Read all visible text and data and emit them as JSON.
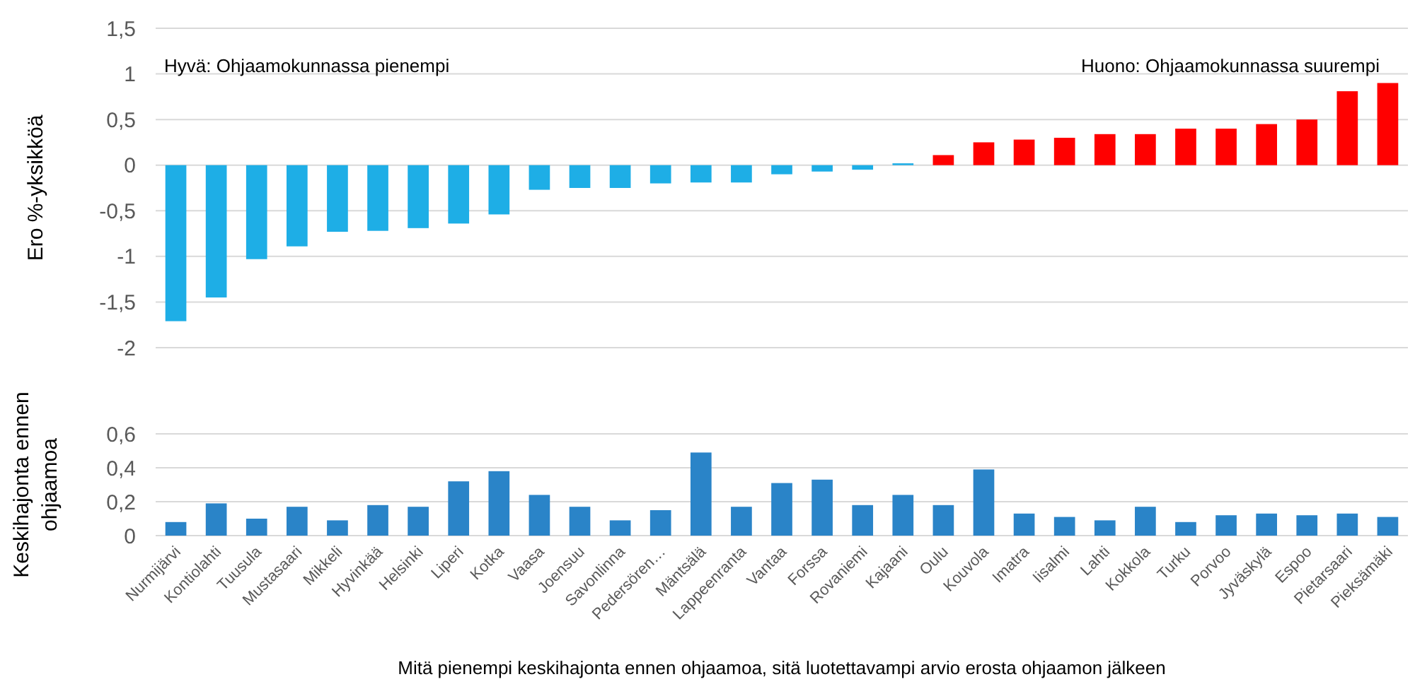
{
  "chart_data": [
    {
      "type": "bar",
      "ylabel": "Ero %-yksikköä",
      "annotations": [
        "Hyvä: Ohjaamokunnassa pienempi",
        "Huono: Ohjaamokunnassa suurempi"
      ],
      "values": [
        -1.71,
        -1.45,
        -1.03,
        -0.89,
        -0.73,
        -0.72,
        -0.69,
        -0.64,
        -0.54,
        -0.27,
        -0.25,
        -0.25,
        -0.2,
        -0.19,
        -0.19,
        -0.1,
        -0.07,
        -0.05,
        0.02,
        0.11,
        0.25,
        0.28,
        0.3,
        0.34,
        0.34,
        0.4,
        0.4,
        0.45,
        0.5,
        0.81,
        0.9
      ],
      "colors": [
        "#1eaee6",
        "#1eaee6",
        "#1eaee6",
        "#1eaee6",
        "#1eaee6",
        "#1eaee6",
        "#1eaee6",
        "#1eaee6",
        "#1eaee6",
        "#1eaee6",
        "#1eaee6",
        "#1eaee6",
        "#1eaee6",
        "#1eaee6",
        "#1eaee6",
        "#1eaee6",
        "#1eaee6",
        "#1eaee6",
        "#1eaee6",
        "#ff0000",
        "#ff0000",
        "#ff0000",
        "#ff0000",
        "#ff0000",
        "#ff0000",
        "#ff0000",
        "#ff0000",
        "#ff0000",
        "#ff0000",
        "#ff0000",
        "#ff0000"
      ],
      "ylim": [
        -2,
        1.5
      ],
      "yticks": [
        {
          "value": -2,
          "label": "-2"
        },
        {
          "value": -1.5,
          "label": "-1,5"
        },
        {
          "value": -1,
          "label": "-1"
        },
        {
          "value": -0.5,
          "label": "-0,5"
        },
        {
          "value": 0,
          "label": "0"
        },
        {
          "value": 0.5,
          "label": "0,5"
        },
        {
          "value": 1,
          "label": "1"
        },
        {
          "value": 1.5,
          "label": "1,5"
        }
      ],
      "grid": "y",
      "tick_labels": "y"
    },
    {
      "type": "bar",
      "ylabel": "Keskihajonta ennen ohjaamoa",
      "xlabel": "Mitä pienempi keskihajonta ennen ohjaamoa, sitä luotettavampi arvio erosta ohjaamon jälkeen",
      "categories": [
        "Nurmijärvi",
        "Kontiolahti",
        "Tuusula",
        "Mustasaari",
        "Mikkeli",
        "Hyvinkää",
        "Helsinki",
        "Liperi",
        "Kotka",
        "Vaasa",
        "Joensuu",
        "Savonlinna",
        "Pedersören…",
        "Mäntsälä",
        "Lappeenranta",
        "Vantaa",
        "Forssa",
        "Rovaniemi",
        "Kajaani",
        "Oulu",
        "Kouvola",
        "Imatra",
        "Iisalmi",
        "Lahti",
        "Kokkola",
        "Turku",
        "Porvoo",
        "Jyväskylä",
        "Espoo",
        "Pietarsaari",
        "Pieksämäki"
      ],
      "values": [
        0.08,
        0.19,
        0.1,
        0.17,
        0.09,
        0.18,
        0.17,
        0.32,
        0.38,
        0.24,
        0.17,
        0.09,
        0.15,
        0.49,
        0.17,
        0.31,
        0.33,
        0.18,
        0.24,
        0.18,
        0.39,
        0.13,
        0.11,
        0.09,
        0.17,
        0.08,
        0.12,
        0.13,
        0.12,
        0.13,
        0.11
      ],
      "color": "#2a84c8",
      "ylim": [
        0,
        0.6
      ],
      "yticks": [
        {
          "value": 0,
          "label": "0"
        },
        {
          "value": 0.2,
          "label": "0,2"
        },
        {
          "value": 0.4,
          "label": "0,4"
        },
        {
          "value": 0.6,
          "label": "0,6"
        }
      ],
      "grid": "y"
    }
  ]
}
